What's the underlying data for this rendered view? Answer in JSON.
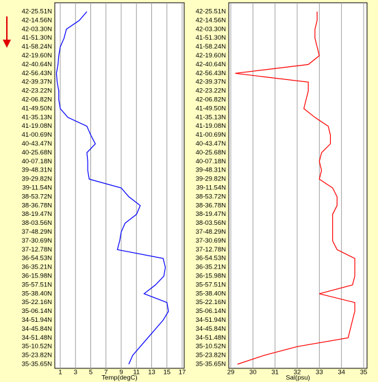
{
  "chart_data": [
    {
      "type": "line",
      "orientation": "vertical",
      "x_label": "Temp(degC)",
      "categories": [
        "42-25.51N",
        "42-14.56N",
        "42-03.30N",
        "41-51.30N",
        "41-58.24N",
        "42-19.60N",
        "42-40.64N",
        "42-56.43N",
        "42-39.37N",
        "42-23.22N",
        "42-06.82N",
        "41-49.50N",
        "41-35.13N",
        "41-19.08N",
        "41-00.69N",
        "40-43.47N",
        "40-25.68N",
        "40-07.18N",
        "39-48.31N",
        "39-29.82N",
        "39-11.54N",
        "38-53.72N",
        "38-36.78N",
        "38-19.47N",
        "38-03.56N",
        "37-48.29N",
        "37-30.69N",
        "37-12.78N",
        "36-54.53N",
        "36-35.21N",
        "36-15.98N",
        "35-57.51N",
        "35-38.40N",
        "35-22.16N",
        "35-06.14N",
        "34-51.94N",
        "34-45.84N",
        "34-51.48N",
        "35-10.52N",
        "35-23.82N",
        "35-35.65N"
      ],
      "values": [
        4.5,
        3.5,
        1.8,
        1.5,
        1.0,
        0.8,
        0.7,
        0.5,
        0.6,
        0.8,
        0.8,
        1.0,
        2.0,
        4.5,
        5.0,
        5.6,
        4.5,
        4.6,
        4.6,
        4.8,
        9.0,
        10.0,
        11.5,
        11.0,
        9.5,
        9.0,
        8.8,
        8.5,
        14.5,
        14.8,
        14.6,
        13.5,
        12.0,
        15.0,
        15.2,
        14.5,
        13.5,
        12.5,
        11.5,
        10.5,
        10.0
      ],
      "color": "#0000ff",
      "xlim": [
        1,
        17
      ],
      "xticks": [
        1,
        3,
        5,
        7,
        9,
        11,
        13,
        15,
        17
      ],
      "grid": true
    },
    {
      "type": "line",
      "orientation": "vertical",
      "x_label": "Sal(psu)",
      "categories": [
        "42-25.51N",
        "42-14.56N",
        "42-03.30N",
        "41-51.30N",
        "41-58.24N",
        "42-19.60N",
        "42-40.64N",
        "42-56.43N",
        "42-39.37N",
        "42-23.22N",
        "42-06.82N",
        "41-49.50N",
        "41-35.13N",
        "41-19.08N",
        "41-00.69N",
        "40-43.47N",
        "40-25.68N",
        "40-07.18N",
        "39-48.31N",
        "39-29.82N",
        "39-11.54N",
        "38-53.72N",
        "38-36.78N",
        "38-19.47N",
        "38-03.56N",
        "37-48.29N",
        "37-30.69N",
        "37-12.78N",
        "36-54.53N",
        "36-35.21N",
        "36-15.98N",
        "35-57.51N",
        "35-38.40N",
        "35-22.16N",
        "35-06.14N",
        "34-51.94N",
        "34-45.84N",
        "34-51.48N",
        "35-10.52N",
        "35-23.82N",
        "35-35.65N"
      ],
      "values": [
        32.9,
        32.9,
        32.8,
        32.8,
        32.9,
        33.0,
        32.5,
        29.2,
        32.5,
        32.5,
        32.4,
        32.3,
        32.8,
        33.4,
        33.5,
        33.5,
        33.1,
        33.0,
        33.1,
        33.0,
        33.6,
        33.8,
        33.8,
        33.6,
        33.6,
        33.6,
        33.6,
        33.8,
        34.6,
        34.6,
        34.6,
        34.5,
        33.0,
        34.6,
        34.6,
        34.5,
        34.4,
        34.3,
        32.0,
        30.5,
        29.3
      ],
      "color": "#ff0000",
      "xlim": [
        29,
        35
      ],
      "xticks": [
        29,
        30,
        31,
        32,
        33,
        34,
        35
      ],
      "grid": true
    }
  ]
}
